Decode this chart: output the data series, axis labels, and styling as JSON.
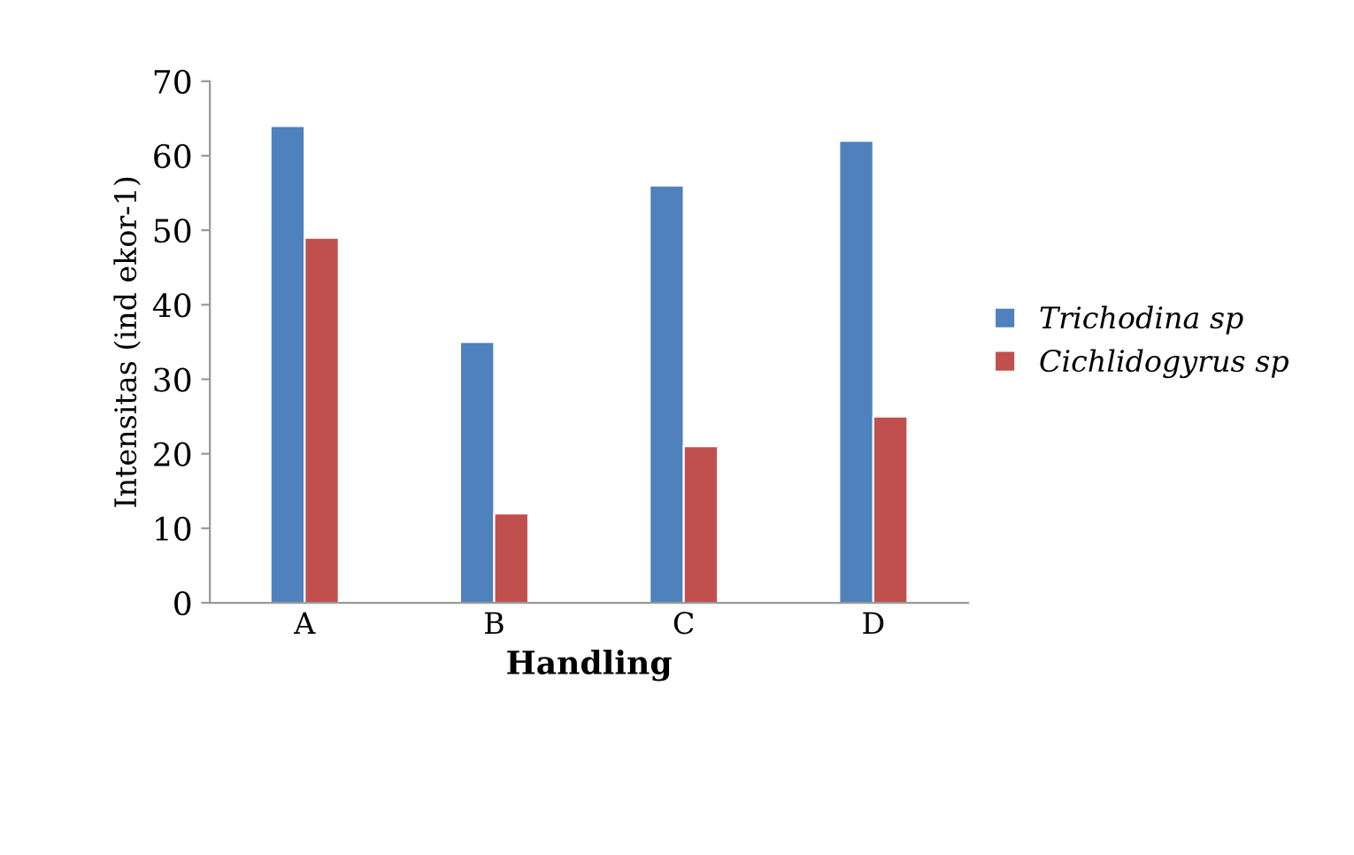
{
  "chart_data": {
    "type": "bar",
    "xlabel": "Handling",
    "ylabel": "Intensitas (ind ekor-1)",
    "categories": [
      "A",
      "B",
      "C",
      "D"
    ],
    "series": [
      {
        "name": "Trichodina sp",
        "color": "#4f81bd",
        "values": [
          64,
          35,
          56,
          62
        ]
      },
      {
        "name": "Cichlidogyrus sp",
        "color": "#c0504d",
        "values": [
          49,
          12,
          21,
          25
        ]
      }
    ],
    "ylim": [
      0,
      70
    ],
    "yticks": [
      0,
      10,
      20,
      30,
      40,
      50,
      60,
      70
    ],
    "grid": false,
    "legend": "right"
  }
}
